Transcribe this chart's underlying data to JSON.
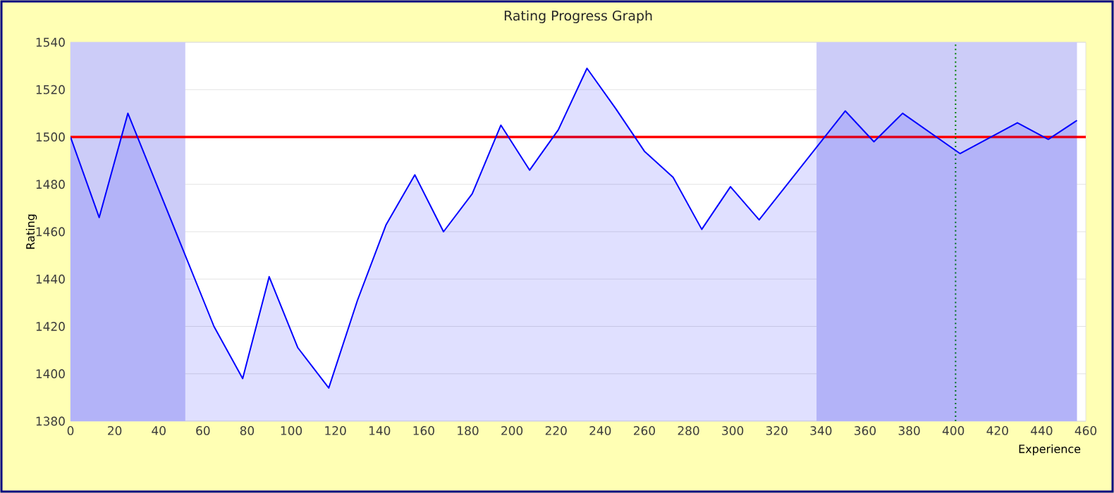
{
  "chart_data": {
    "type": "area",
    "title": "Rating Progress Graph",
    "xlabel": "Experience",
    "ylabel": "Rating",
    "xlim": [
      0,
      460
    ],
    "ylim": [
      1380,
      1540
    ],
    "xticks": [
      0,
      20,
      40,
      60,
      80,
      100,
      120,
      140,
      160,
      180,
      200,
      220,
      240,
      260,
      280,
      300,
      320,
      340,
      360,
      380,
      400,
      420,
      440,
      460
    ],
    "yticks": [
      1380,
      1400,
      1420,
      1440,
      1460,
      1480,
      1500,
      1520,
      1540
    ],
    "grid": "y",
    "series": [
      {
        "color": "#0000ff",
        "x": [
          0,
          13,
          26,
          65,
          78,
          90,
          103,
          117,
          130,
          143,
          156,
          169,
          182,
          195,
          208,
          221,
          234,
          247,
          260,
          273,
          286,
          299,
          312,
          351,
          364,
          377,
          403,
          429,
          443,
          456
        ],
        "values": [
          1500,
          1466,
          1510,
          1420,
          1398,
          1441,
          1411,
          1394,
          1431,
          1463,
          1484,
          1460,
          1476,
          1505,
          1486,
          1503,
          1529,
          1512,
          1494,
          1483,
          1461,
          1479,
          1465,
          1511,
          1498,
          1510,
          1493,
          1506,
          1499,
          1507
        ]
      }
    ],
    "ref_lines": [
      {
        "axis": "y",
        "value": 1500,
        "color": "#ff0000",
        "line_style": "solid"
      },
      {
        "axis": "x",
        "value": 401,
        "color": "#008000",
        "line_style": "dotted"
      }
    ],
    "bands": [
      {
        "axis": "x",
        "from": 0,
        "to": 52,
        "color": "#ccccf8"
      },
      {
        "axis": "x",
        "from": 338,
        "to": 456,
        "color": "#ccccf8"
      }
    ]
  }
}
